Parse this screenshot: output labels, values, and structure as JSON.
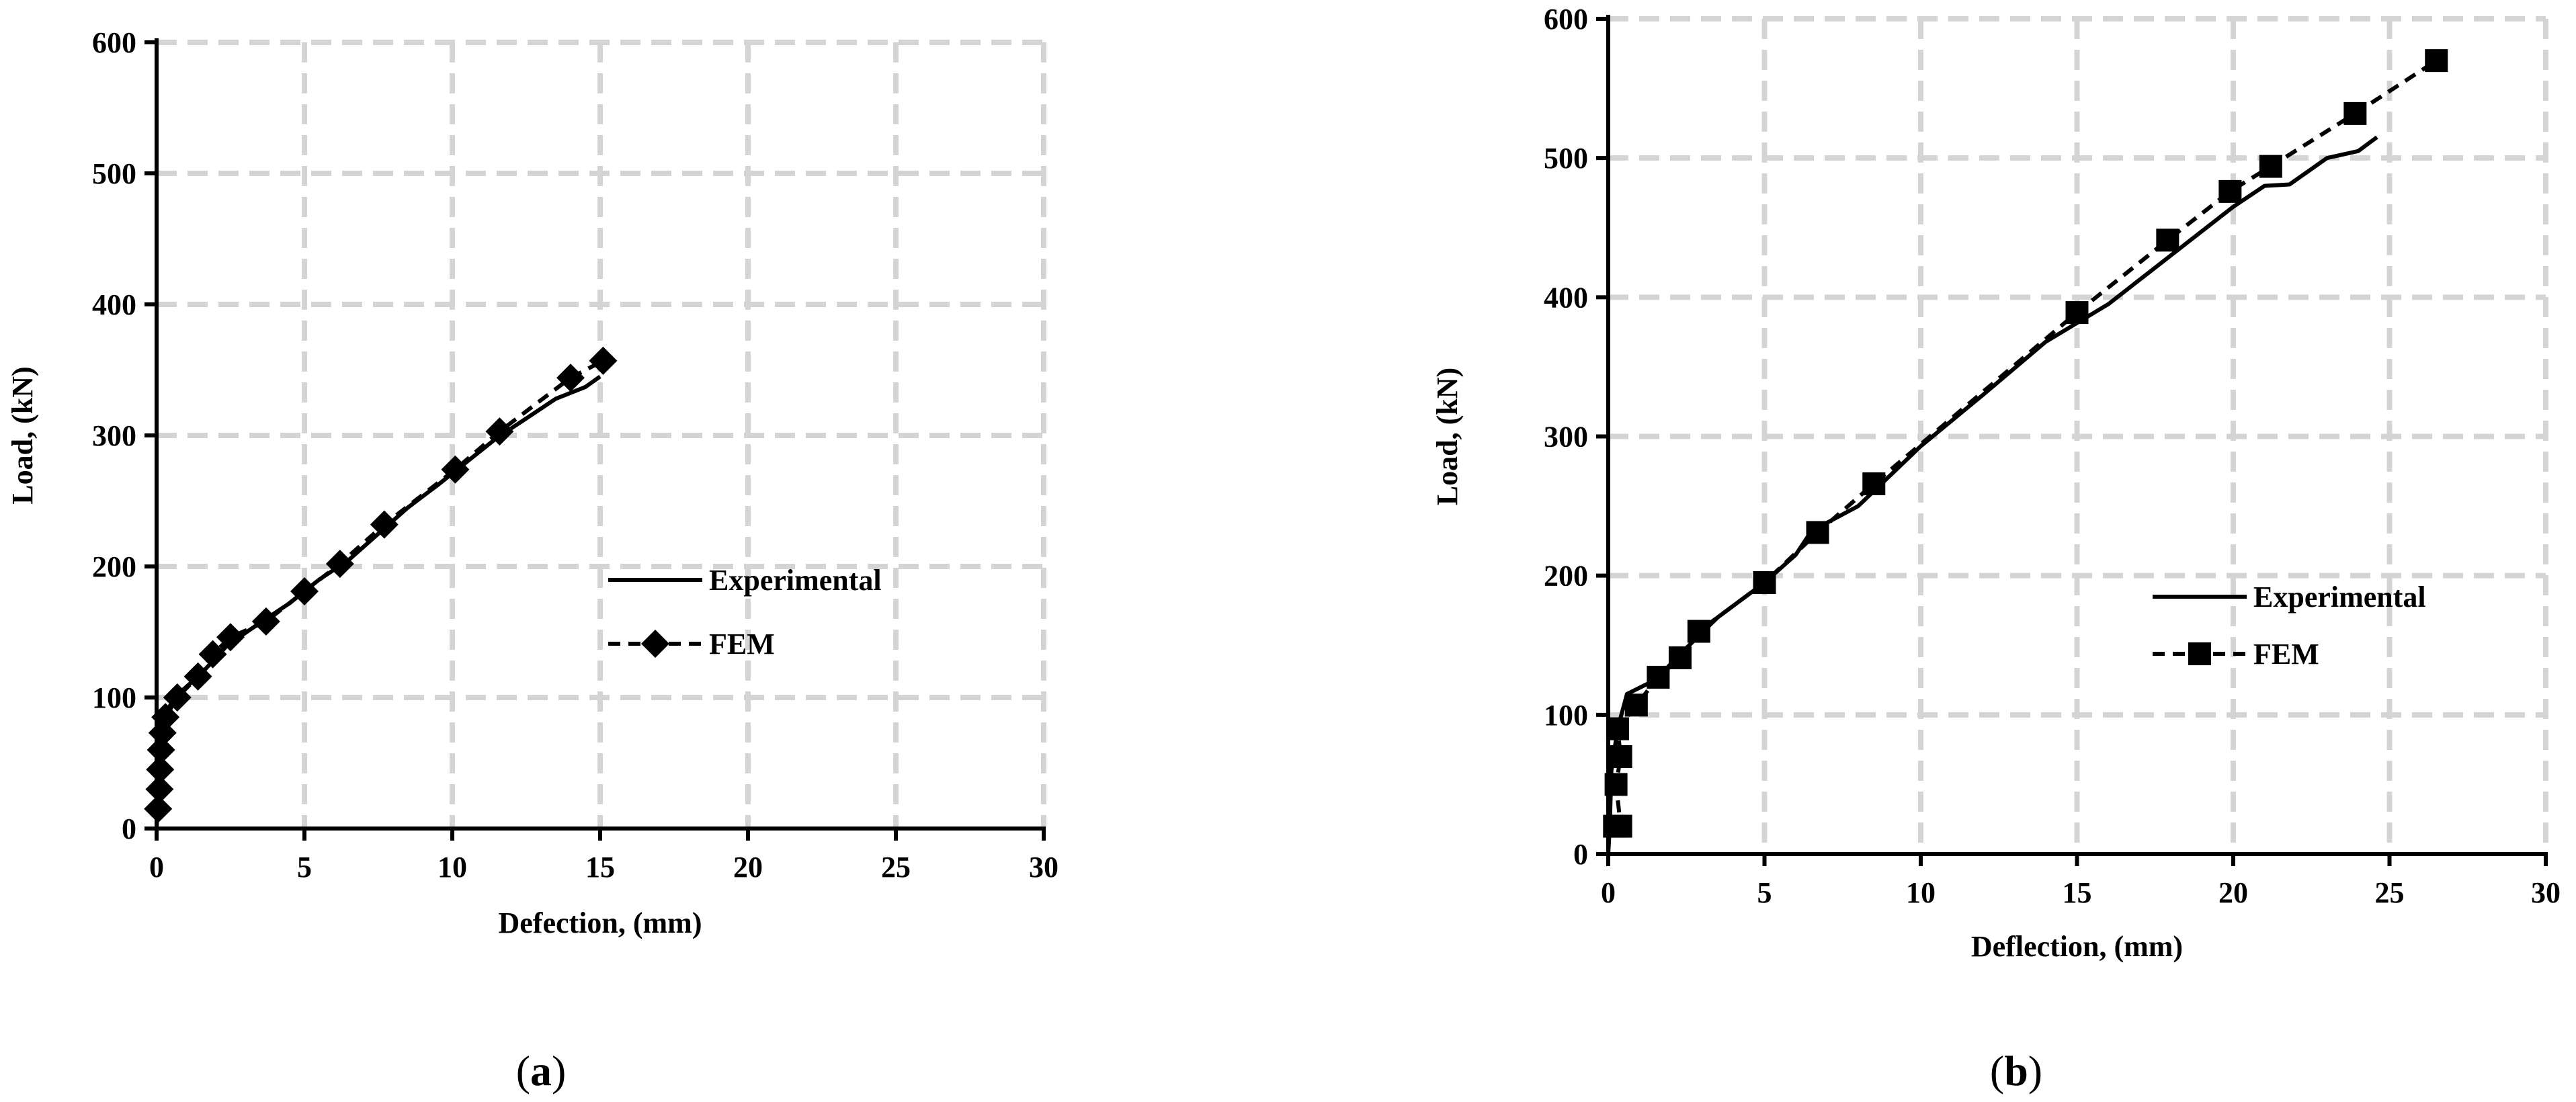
{
  "chart_data": [
    {
      "type": "line",
      "panel_label": "a",
      "xlabel": "Defection, (mm)",
      "ylabel": "Load, (kN)",
      "xlim": [
        0,
        30
      ],
      "ylim": [
        0,
        600
      ],
      "xticks": [
        0,
        5,
        10,
        15,
        20,
        25,
        30
      ],
      "yticks": [
        0,
        100,
        200,
        300,
        400,
        500,
        600
      ],
      "grid": true,
      "legend_position": "center-right",
      "series": [
        {
          "name": "Experimental",
          "style": "solid",
          "marker": "none",
          "color": "#000000",
          "points": [
            [
              0,
              0
            ],
            [
              0.05,
              20
            ],
            [
              0.1,
              45
            ],
            [
              0.15,
              70
            ],
            [
              0.25,
              85
            ],
            [
              0.6,
              100
            ],
            [
              1.5,
              118
            ],
            [
              2.4,
              140
            ],
            [
              3.5,
              157
            ],
            [
              4.5,
              172
            ],
            [
              5.5,
              190
            ],
            [
              6.5,
              205
            ],
            [
              7.5,
              225
            ],
            [
              8.5,
              245
            ],
            [
              9.5,
              262
            ],
            [
              10.5,
              280
            ],
            [
              11.5,
              298
            ],
            [
              12.5,
              313
            ],
            [
              13.5,
              328
            ],
            [
              14.5,
              337
            ],
            [
              15.0,
              345
            ]
          ]
        },
        {
          "name": "FEM",
          "style": "dashed",
          "marker": "diamond",
          "color": "#000000",
          "points": [
            [
              0.05,
              15
            ],
            [
              0.1,
              30
            ],
            [
              0.12,
              45
            ],
            [
              0.15,
              60
            ],
            [
              0.2,
              73
            ],
            [
              0.3,
              85
            ],
            [
              0.7,
              100
            ],
            [
              1.4,
              116
            ],
            [
              1.9,
              133
            ],
            [
              2.5,
              146
            ],
            [
              3.7,
              158
            ],
            [
              5.0,
              181
            ],
            [
              6.2,
              202
            ],
            [
              7.7,
              232
            ],
            [
              10.1,
              274
            ],
            [
              11.6,
              303
            ],
            [
              14.0,
              344
            ],
            [
              15.1,
              357
            ]
          ]
        }
      ]
    },
    {
      "type": "line",
      "panel_label": "b",
      "xlabel": "Deflection, (mm)",
      "ylabel": "Load, (kN)",
      "xlim": [
        0,
        30
      ],
      "ylim": [
        0,
        600
      ],
      "xticks": [
        0,
        5,
        10,
        15,
        20,
        25,
        30
      ],
      "yticks": [
        0,
        100,
        200,
        300,
        400,
        500,
        600
      ],
      "grid": true,
      "legend_position": "center-right",
      "series": [
        {
          "name": "Experimental",
          "style": "solid",
          "marker": "none",
          "color": "#000000",
          "points": [
            [
              0,
              0
            ],
            [
              0.05,
              20
            ],
            [
              0.1,
              60
            ],
            [
              0.3,
              90
            ],
            [
              0.6,
              115
            ],
            [
              1.5,
              125
            ],
            [
              2.5,
              148
            ],
            [
              3.5,
              170
            ],
            [
              5.0,
              195
            ],
            [
              6.0,
              215
            ],
            [
              6.5,
              232
            ],
            [
              8.0,
              250
            ],
            [
              10.0,
              293
            ],
            [
              12.0,
              330
            ],
            [
              14.0,
              368
            ],
            [
              16.0,
              395
            ],
            [
              18.0,
              430
            ],
            [
              20.0,
              465
            ],
            [
              21.0,
              480
            ],
            [
              21.8,
              481
            ],
            [
              23.0,
              500
            ],
            [
              24.0,
              505
            ],
            [
              24.6,
              515
            ]
          ]
        },
        {
          "name": "FEM",
          "style": "dashed",
          "marker": "square",
          "color": "#000000",
          "points": [
            [
              0.2,
              20
            ],
            [
              0.4,
              20
            ],
            [
              0.25,
              50
            ],
            [
              0.4,
              70
            ],
            [
              0.3,
              90
            ],
            [
              0.9,
              107
            ],
            [
              1.6,
              127
            ],
            [
              2.3,
              141
            ],
            [
              2.9,
              160
            ],
            [
              5.0,
              195
            ],
            [
              6.7,
              231
            ],
            [
              8.5,
              266
            ],
            [
              15.0,
              389
            ],
            [
              17.9,
              441
            ],
            [
              19.9,
              476
            ],
            [
              21.2,
              494
            ],
            [
              23.9,
              532
            ],
            [
              26.5,
              570
            ]
          ]
        }
      ]
    }
  ],
  "captions": {
    "a": {
      "open": "(",
      "letter": "a",
      "close": ")"
    },
    "b": {
      "open": "(",
      "letter": "b",
      "close": ")"
    }
  }
}
